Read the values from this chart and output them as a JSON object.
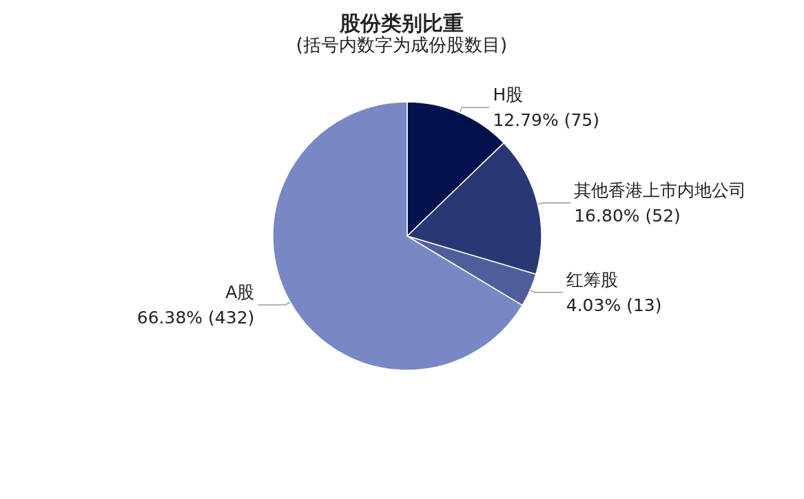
{
  "chart_data": {
    "type": "pie",
    "title": "股份类别比重",
    "subtitle": "(括号内数字为成份股数目)",
    "categories": [
      "H股",
      "其他香港上市内地公司",
      "红筹股",
      "A股"
    ],
    "values": [
      12.79,
      16.8,
      4.03,
      66.38
    ],
    "colors": [
      "#03124d",
      "#2a3775",
      "#4f5e9a",
      "#7888c4"
    ],
    "value_labels": [
      "12.79% (75)",
      "16.80% (52)",
      "4.03% (13)",
      "66.38% (432)"
    ]
  }
}
